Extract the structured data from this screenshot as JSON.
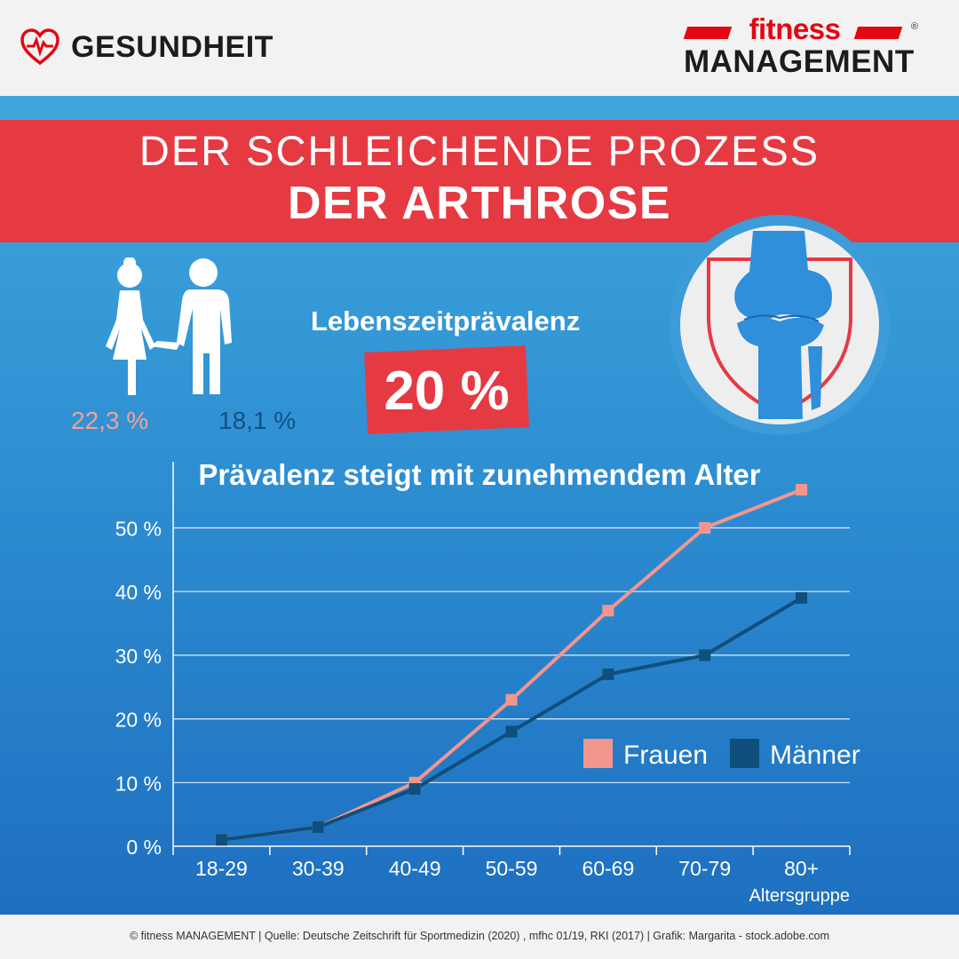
{
  "header": {
    "category_label": "GESUNDHEIT",
    "brand_top": "fitness",
    "brand_bottom": "MANAGEMENT",
    "brand_mark": "®"
  },
  "title": {
    "line1": "DER SCHLEICHENDE PROZESS",
    "line2": "DER ARTHROSE"
  },
  "prevalence": {
    "label": "Lebenszeitprävalenz",
    "value": "20 %",
    "women_value": "22,3 %",
    "men_value": "18,1 %"
  },
  "icons": {
    "category": "heart-pulse-icon",
    "people": "couple-icon",
    "knee": "knee-joint-icon"
  },
  "colors": {
    "red": "#e63a43",
    "women": "#f2968d",
    "men": "#0f4f7c",
    "brand_red": "#e30613"
  },
  "chart_data": {
    "type": "line",
    "title": "Prävalenz steigt mit zunehmendem Alter",
    "xlabel": "Altersgruppe",
    "ylabel": "",
    "categories": [
      "18-29",
      "30-39",
      "40-49",
      "50-59",
      "60-69",
      "70-79",
      "80+"
    ],
    "y_ticks": [
      "0 %",
      "10 %",
      "20 %",
      "30 %",
      "40 %",
      "50 %"
    ],
    "ylim": [
      0,
      56
    ],
    "grid": true,
    "legend_position": "right",
    "series": [
      {
        "name": "Frauen",
        "color": "#f2968d",
        "values": [
          1,
          3,
          10,
          23,
          37,
          50,
          56
        ]
      },
      {
        "name": "Männer",
        "color": "#0f4f7c",
        "values": [
          1,
          3,
          9,
          18,
          27,
          30,
          39
        ]
      }
    ]
  },
  "footer": {
    "text": "© fitness MANAGEMENT   |  Quelle: Deutsche Zeitschrift für Sportmedizin (2020) , mfhc 01/19, RKI (2017)  |  Grafik: Margarita - stock.adobe.com"
  }
}
